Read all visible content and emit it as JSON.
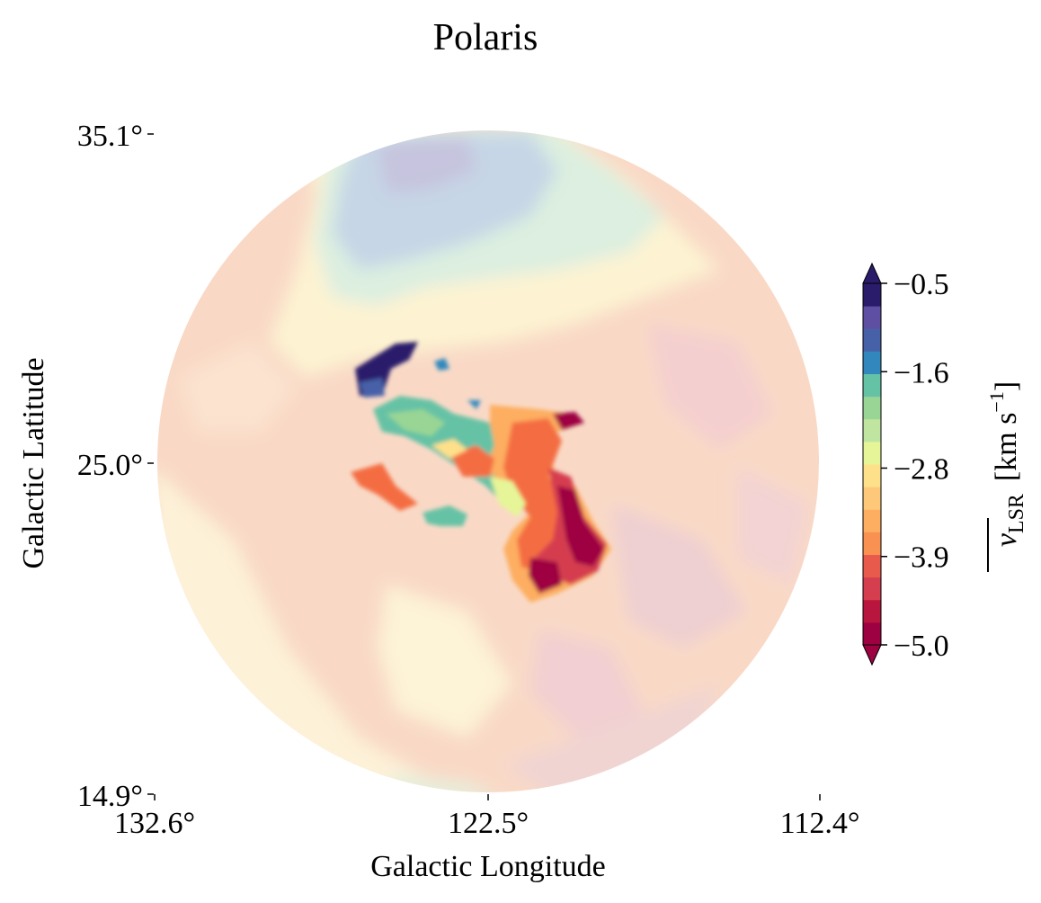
{
  "chart_data": {
    "type": "heatmap",
    "title": "Polaris",
    "xlabel": "Galactic Longitude",
    "ylabel": "Galactic Latitude",
    "x_ticks": [
      "132.6°",
      "122.5°",
      "112.4°"
    ],
    "y_ticks": [
      "35.1°",
      "25.0°",
      "14.9°"
    ],
    "xlim": [
      132.6,
      112.4
    ],
    "ylim": [
      14.9,
      35.1
    ],
    "colorbar": {
      "label_main": "v",
      "label_sub": "LSR",
      "label_unit": "[km s",
      "label_unit_sup": "−1",
      "label_unit_end": "]",
      "range": [
        -5.0,
        -0.5
      ],
      "ticks": [
        "−0.5",
        "−1.6",
        "−2.8",
        "−3.9",
        "−5.0"
      ],
      "tick_values": [
        -0.5,
        -1.6,
        -2.8,
        -3.9,
        -5.0
      ],
      "extend": "both",
      "colormap": "Spectral",
      "levels": 16
    },
    "map_footprint": "circular",
    "colors": {
      "min": "#9e0142",
      "max": "#2a1b6b"
    }
  }
}
